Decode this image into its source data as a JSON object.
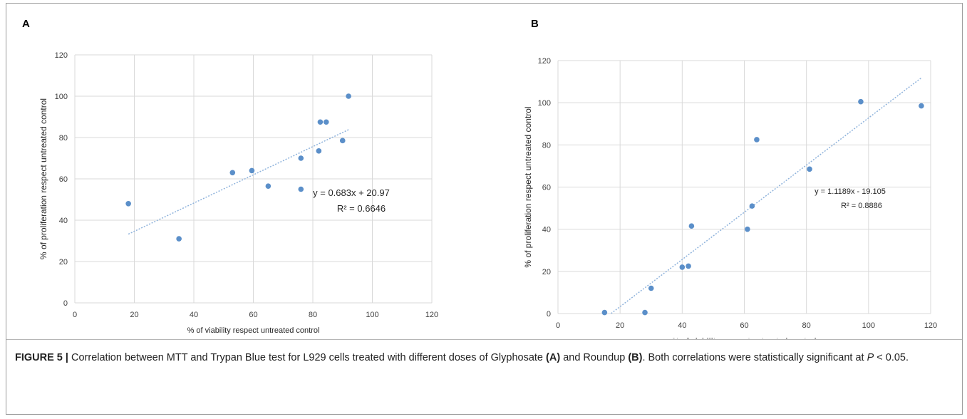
{
  "caption": {
    "figure_label": "FIGURE 5 |",
    "text_1": "Correlation between MTT and Trypan Blue test for L929 cells treated with different doses of Glyphosate",
    "ref_a": "(A)",
    "text_2": "and Roundup",
    "ref_b": "(B)",
    "text_3": ". Both correlations were statistically significant at",
    "p_symbol": "P",
    "p_condition": "< 0.05."
  },
  "colors": {
    "point": "#5b8fc9",
    "trendline": "#8fb3dc",
    "grid": "#d9d9d9",
    "text": "#404040"
  },
  "chart_data": [
    {
      "panel_label": "A",
      "type": "scatter",
      "title": "",
      "xlabel": "% of viability respect untreated control",
      "ylabel": "% of proliferation respect untreated control",
      "xlim": [
        0,
        120
      ],
      "ylim": [
        0,
        120
      ],
      "xticks": [
        0,
        20,
        40,
        60,
        80,
        100,
        120
      ],
      "yticks": [
        0,
        20,
        40,
        60,
        80,
        100,
        120
      ],
      "grid": true,
      "x": [
        18,
        35,
        53,
        59.5,
        65,
        76,
        76,
        82,
        82.5,
        84.5,
        90,
        92
      ],
      "y": [
        48,
        31,
        63,
        64,
        56.5,
        55,
        70,
        73.5,
        87.5,
        87.5,
        78.5,
        100
      ],
      "trendline": {
        "slope": 0.683,
        "intercept": 20.97,
        "x_range": [
          18,
          92
        ]
      },
      "equation": "y = 0.683x + 20.97",
      "r_squared": "R² = 0.6646"
    },
    {
      "panel_label": "B",
      "type": "scatter",
      "title": "",
      "xlabel": "% of viability respect antreated control",
      "ylabel": "% of proliferation respect untreated control",
      "xlim": [
        0,
        120
      ],
      "ylim": [
        0,
        120
      ],
      "xticks": [
        0,
        20,
        40,
        60,
        80,
        100,
        120
      ],
      "yticks": [
        0,
        20,
        40,
        60,
        80,
        100,
        120
      ],
      "grid": true,
      "x": [
        15,
        28,
        30,
        40,
        42,
        43,
        61,
        62.5,
        64,
        81,
        97.5,
        117
      ],
      "y": [
        0.5,
        0.5,
        12,
        22,
        22.5,
        41.5,
        40,
        51,
        82.5,
        68.5,
        100.5,
        98.5
      ],
      "trendline": {
        "slope": 1.1189,
        "intercept": -19.105,
        "x_range": [
          17.1,
          117
        ]
      },
      "equation": "y = 1.1189x - 19.105",
      "r_squared": "R² = 0.8886"
    }
  ]
}
